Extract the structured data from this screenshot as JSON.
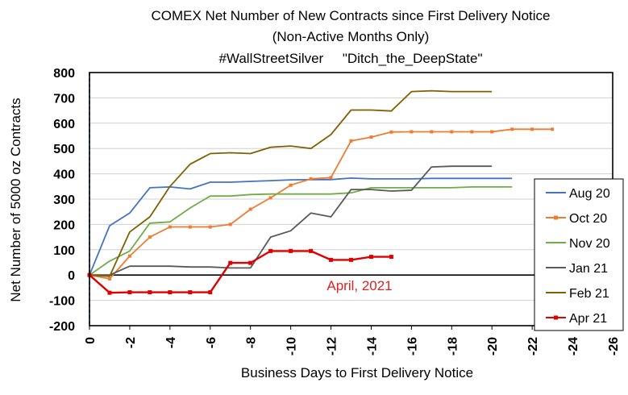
{
  "chart_data": {
    "type": "line",
    "title": "COMEX Net Number of New Contracts since First Delivery Notice",
    "subtitle": "(Non-Active Months Only)",
    "subtitle2": "#WallStreetSilver     \"Ditch_the_DeepState\"",
    "xlabel": "Business Days to First Delivery Notice",
    "ylabel": "Net Number of 5000 oz Contracts",
    "xlim": [
      0,
      -26
    ],
    "ylim": [
      -200,
      800
    ],
    "x_ticks": [
      "0",
      "-2",
      "-4",
      "-6",
      "-8",
      "-10",
      "-12",
      "-14",
      "-16",
      "-18",
      "-20",
      "-22",
      "-24",
      "-26"
    ],
    "y_ticks": [
      "800",
      "700",
      "600",
      "500",
      "400",
      "300",
      "200",
      "100",
      "0",
      "-100",
      "-200"
    ],
    "grid": true,
    "legend_position": "right",
    "annotation": "April, 2021",
    "series": [
      {
        "name": "Aug 20",
        "color": "#4472c4",
        "marker": "none",
        "x": [
          0,
          -1,
          -2,
          -3,
          -4,
          -5,
          -6,
          -7,
          -8,
          -9,
          -10,
          -11,
          -12,
          -13,
          -14,
          -15,
          -16,
          -17,
          -18,
          -19,
          -20,
          -21
        ],
        "y": [
          0,
          195,
          245,
          345,
          348,
          340,
          367,
          367,
          370,
          373,
          376,
          377,
          377,
          383,
          380,
          380,
          380,
          382,
          382,
          382,
          382,
          382
        ]
      },
      {
        "name": "Oct 20",
        "color": "#ed7d31",
        "marker": "square",
        "x": [
          0,
          -1,
          -2,
          -3,
          -4,
          -5,
          -6,
          -7,
          -8,
          -9,
          -10,
          -11,
          -12,
          -13,
          -14,
          -15,
          -16,
          -17,
          -18,
          -19,
          -20,
          -21,
          -22,
          -23
        ],
        "y": [
          0,
          -15,
          75,
          150,
          190,
          190,
          190,
          200,
          260,
          305,
          355,
          380,
          385,
          530,
          545,
          565,
          566,
          566,
          566,
          566,
          566,
          576,
          576,
          576
        ]
      },
      {
        "name": "Nov 20",
        "color": "#70ad47",
        "marker": "none",
        "x": [
          0,
          -1,
          -2,
          -3,
          -4,
          -5,
          -6,
          -7,
          -8,
          -9,
          -10,
          -11,
          -12,
          -13,
          -14,
          -15,
          -16,
          -17,
          -18,
          -19,
          -20,
          -21
        ],
        "y": [
          0,
          55,
          95,
          205,
          210,
          265,
          312,
          312,
          318,
          320,
          320,
          320,
          320,
          325,
          345,
          345,
          345,
          345,
          345,
          348,
          348,
          348
        ]
      },
      {
        "name": "Jan 21",
        "color": "#595959",
        "marker": "none",
        "x": [
          0,
          -1,
          -2,
          -3,
          -4,
          -5,
          -6,
          -7,
          -8,
          -9,
          -10,
          -11,
          -12,
          -13,
          -14,
          -15,
          -16,
          -17,
          -18,
          -19,
          -20
        ],
        "y": [
          0,
          0,
          35,
          35,
          35,
          32,
          32,
          28,
          28,
          150,
          175,
          245,
          230,
          338,
          338,
          332,
          335,
          427,
          430,
          430,
          430
        ]
      },
      {
        "name": "Feb 21",
        "color": "#806000",
        "marker": "none",
        "x": [
          0,
          -1,
          -2,
          -3,
          -4,
          -5,
          -6,
          -7,
          -8,
          -9,
          -10,
          -11,
          -12,
          -13,
          -14,
          -15,
          -16,
          -17,
          -18,
          -19,
          -20
        ],
        "y": [
          0,
          -5,
          170,
          230,
          350,
          438,
          480,
          483,
          480,
          505,
          510,
          500,
          555,
          652,
          652,
          648,
          725,
          728,
          725,
          725,
          725
        ]
      },
      {
        "name": "Apr 21",
        "color": "#e00000",
        "marker": "square",
        "x": [
          0,
          -1,
          -2,
          -3,
          -4,
          -5,
          -6,
          -7,
          -8,
          -9,
          -10,
          -11,
          -12,
          -13,
          -14,
          -15
        ],
        "y": [
          0,
          -70,
          -68,
          -68,
          -68,
          -68,
          -68,
          48,
          48,
          95,
          95,
          95,
          60,
          60,
          72,
          72
        ]
      }
    ]
  }
}
